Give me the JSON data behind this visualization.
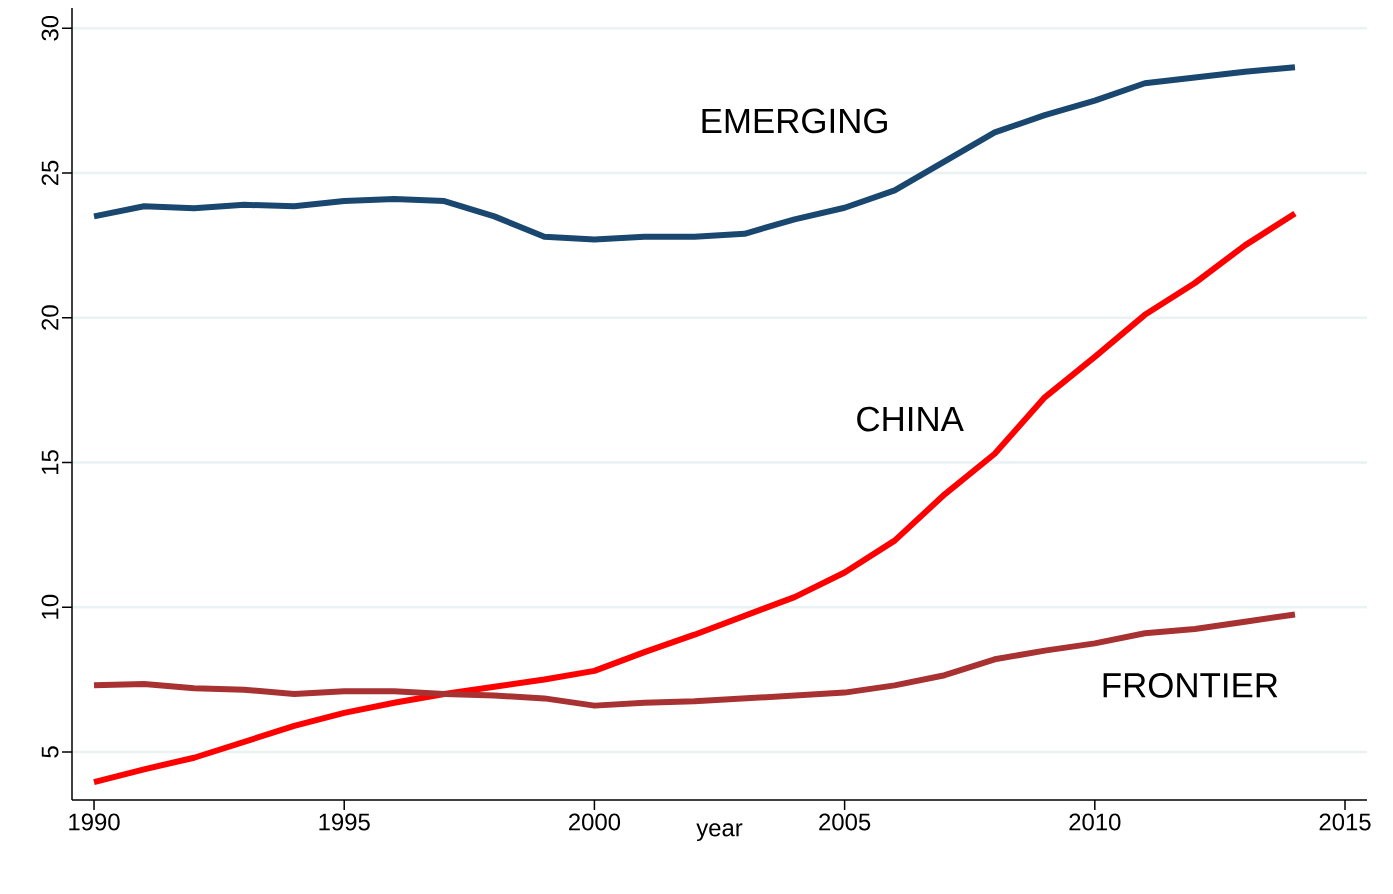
{
  "chart_data": {
    "type": "line",
    "xlabel": "year",
    "x": [
      1990,
      1991,
      1992,
      1993,
      1994,
      1995,
      1996,
      1997,
      1998,
      1999,
      2000,
      2001,
      2002,
      2003,
      2004,
      2005,
      2006,
      2007,
      2008,
      2009,
      2010,
      2011,
      2012,
      2013,
      2014
    ],
    "series": [
      {
        "name": "EMERGING",
        "color": "#1a476f",
        "values": [
          23.5,
          23.85,
          23.78,
          23.9,
          23.85,
          24.03,
          24.1,
          24.03,
          23.5,
          22.8,
          22.7,
          22.8,
          22.8,
          22.9,
          23.4,
          23.8,
          24.4,
          25.4,
          26.4,
          27.0,
          27.5,
          28.1,
          28.3,
          28.5,
          28.65
        ]
      },
      {
        "name": "CHINA",
        "color": "#ff0000",
        "values": [
          3.96,
          4.4,
          4.8,
          5.35,
          5.9,
          6.35,
          6.7,
          7.0,
          7.25,
          7.5,
          7.8,
          8.45,
          9.05,
          9.7,
          10.35,
          11.2,
          12.3,
          13.9,
          15.3,
          17.25,
          18.65,
          20.1,
          21.2,
          22.5,
          23.6
        ]
      },
      {
        "name": "FRONTIER",
        "color": "#a83232",
        "values": [
          7.3,
          7.35,
          7.2,
          7.15,
          7.0,
          7.1,
          7.1,
          7.0,
          6.95,
          6.85,
          6.6,
          6.7,
          6.75,
          6.85,
          6.95,
          7.05,
          7.3,
          7.65,
          8.2,
          8.5,
          8.75,
          9.1,
          9.25,
          9.5,
          9.75
        ]
      }
    ],
    "xlim": [
      1989.56,
      2015.44
    ],
    "xticks": [
      1990,
      1995,
      2000,
      2005,
      2010,
      2015
    ],
    "ylim": [
      3.34,
      30.7
    ],
    "yticks": [
      5,
      10,
      15,
      20,
      25,
      30
    ],
    "grid": "y",
    "marker": "none",
    "line_style": "solid"
  }
}
